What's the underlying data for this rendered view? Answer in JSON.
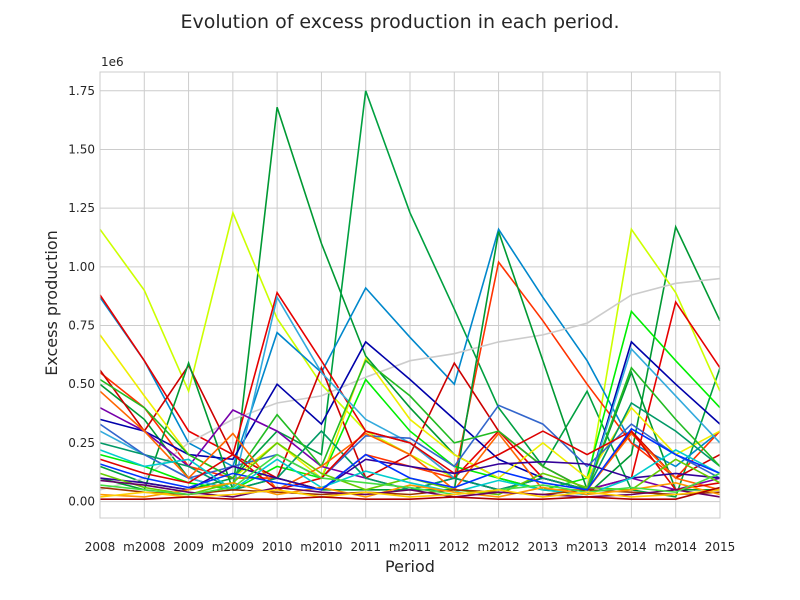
{
  "chart_data": {
    "type": "line",
    "title": "Evolution of excess production in each period.",
    "xlabel": "Period",
    "ylabel": "Excess production",
    "y_offset_label": "1e6",
    "categories": [
      "2008",
      "m2008",
      "2009",
      "m2009",
      "2010",
      "m2010",
      "2011",
      "m2011",
      "2012",
      "m2012",
      "2013",
      "m2013",
      "2014",
      "m2014",
      "2015"
    ],
    "ylim": [
      -0.07,
      1.83
    ],
    "y_scale_multiplier": 1000000,
    "y_ticks": [
      0.0,
      0.25,
      0.5,
      0.75,
      1.0,
      1.25,
      1.5,
      1.75
    ],
    "y_tick_labels": [
      "0.00",
      "0.25",
      "0.50",
      "0.75",
      "1.00",
      "1.25",
      "1.50",
      "1.75"
    ],
    "grid": true,
    "legend": "none",
    "series": [
      {
        "color": "#009933",
        "values": [
          0.5,
          0.35,
          0.1,
          0.05,
          1.68,
          1.1,
          0.62,
          0.4,
          0.2,
          0.1,
          0.05,
          0.03,
          0.2,
          1.17,
          0.77
        ]
      },
      {
        "color": "#00a040",
        "values": [
          0.15,
          0.08,
          0.05,
          0.1,
          0.3,
          0.2,
          1.75,
          1.23,
          0.82,
          0.4,
          0.15,
          0.47,
          0.05,
          0.02,
          0.57
        ]
      },
      {
        "color": "#ccff00",
        "values": [
          1.16,
          0.9,
          0.47,
          1.23,
          0.78,
          0.5,
          0.3,
          0.2,
          0.1,
          0.05,
          0.1,
          0.05,
          1.16,
          0.89,
          0.47
        ]
      },
      {
        "color": "#0088cc",
        "values": [
          0.87,
          0.6,
          0.25,
          0.15,
          0.72,
          0.55,
          0.91,
          0.7,
          0.5,
          1.16,
          0.87,
          0.6,
          0.25,
          0.15,
          0.3
        ]
      },
      {
        "color": "#ff3300",
        "values": [
          0.55,
          0.4,
          0.15,
          0.1,
          0.1,
          0.05,
          0.2,
          0.15,
          0.1,
          1.02,
          0.77,
          0.5,
          0.25,
          0.1,
          0.3
        ]
      },
      {
        "color": "#e60000",
        "values": [
          0.88,
          0.6,
          0.3,
          0.2,
          0.89,
          0.6,
          0.3,
          0.25,
          0.1,
          0.3,
          0.1,
          0.05,
          0.1,
          0.85,
          0.57
        ]
      },
      {
        "color": "#cccccc",
        "values": [
          0.05,
          0.1,
          0.25,
          0.35,
          0.42,
          0.45,
          0.53,
          0.6,
          0.63,
          0.68,
          0.71,
          0.76,
          0.88,
          0.93,
          0.95
        ]
      },
      {
        "color": "#0000aa",
        "values": [
          0.35,
          0.3,
          0.2,
          0.18,
          0.5,
          0.33,
          0.68,
          0.52,
          0.35,
          0.18,
          0.1,
          0.05,
          0.68,
          0.5,
          0.33
        ]
      },
      {
        "color": "#00ee00",
        "values": [
          0.2,
          0.15,
          0.08,
          0.05,
          0.15,
          0.1,
          0.52,
          0.3,
          0.15,
          0.1,
          0.05,
          0.1,
          0.81,
          0.6,
          0.4
        ]
      },
      {
        "color": "#cc0000",
        "values": [
          0.56,
          0.3,
          0.58,
          0.2,
          0.1,
          0.57,
          0.1,
          0.2,
          0.59,
          0.3,
          0.15,
          0.05,
          0.3,
          0.1,
          0.2
        ]
      },
      {
        "color": "#009933",
        "values": [
          0.1,
          0.05,
          0.59,
          0.05,
          0.1,
          0.05,
          0.05,
          0.05,
          0.05,
          1.15,
          0.6,
          0.05,
          0.55,
          0.05,
          0.05
        ]
      },
      {
        "color": "#eeee00",
        "values": [
          0.71,
          0.45,
          0.2,
          0.1,
          0.25,
          0.1,
          0.61,
          0.35,
          0.2,
          0.1,
          0.25,
          0.1,
          0.4,
          0.2,
          0.3
        ]
      },
      {
        "color": "#33aadd",
        "values": [
          0.3,
          0.2,
          0.1,
          0.05,
          0.87,
          0.55,
          0.35,
          0.25,
          0.1,
          0.05,
          0.1,
          0.05,
          0.65,
          0.45,
          0.25
        ]
      },
      {
        "color": "#7700aa",
        "values": [
          0.4,
          0.3,
          0.15,
          0.39,
          0.3,
          0.15,
          0.1,
          0.05,
          0.1,
          0.05,
          0.1,
          0.05,
          0.1,
          0.05,
          0.1
        ]
      },
      {
        "color": "#009966",
        "values": [
          0.25,
          0.2,
          0.15,
          0.05,
          0.1,
          0.3,
          0.1,
          0.05,
          0.1,
          0.05,
          0.1,
          0.05,
          0.42,
          0.3,
          0.15
        ]
      },
      {
        "color": "#3366cc",
        "values": [
          0.33,
          0.2,
          0.1,
          0.15,
          0.2,
          0.1,
          0.28,
          0.27,
          0.15,
          0.41,
          0.33,
          0.15,
          0.33,
          0.2,
          0.1
        ]
      },
      {
        "color": "#22bb22",
        "values": [
          0.52,
          0.4,
          0.2,
          0.1,
          0.37,
          0.15,
          0.6,
          0.45,
          0.25,
          0.3,
          0.15,
          0.05,
          0.57,
          0.35,
          0.15
        ]
      },
      {
        "color": "#ff6600",
        "values": [
          0.47,
          0.3,
          0.1,
          0.29,
          0.05,
          0.15,
          0.29,
          0.2,
          0.05,
          0.29,
          0.05,
          0.05,
          0.29,
          0.1,
          0.05
        ]
      },
      {
        "color": "#dd0000",
        "values": [
          0.18,
          0.12,
          0.08,
          0.2,
          0.05,
          0.1,
          0.3,
          0.25,
          0.12,
          0.2,
          0.3,
          0.2,
          0.3,
          0.05,
          0.08
        ]
      },
      {
        "color": "#330099",
        "values": [
          0.1,
          0.08,
          0.05,
          0.15,
          0.1,
          0.05,
          0.18,
          0.15,
          0.12,
          0.16,
          0.17,
          0.16,
          0.1,
          0.12,
          0.1
        ]
      },
      {
        "color": "#66cc00",
        "values": [
          0.12,
          0.06,
          0.03,
          0.08,
          0.25,
          0.12,
          0.05,
          0.1,
          0.05,
          0.03,
          0.12,
          0.06,
          0.05,
          0.18,
          0.08
        ]
      },
      {
        "color": "#00cccc",
        "values": [
          0.22,
          0.15,
          0.18,
          0.05,
          0.18,
          0.06,
          0.13,
          0.08,
          0.04,
          0.09,
          0.05,
          0.03,
          0.1,
          0.22,
          0.12
        ]
      },
      {
        "color": "#993300",
        "values": [
          0.06,
          0.04,
          0.03,
          0.05,
          0.04,
          0.03,
          0.04,
          0.03,
          0.05,
          0.04,
          0.03,
          0.05,
          0.04,
          0.03,
          0.04
        ]
      },
      {
        "color": "#ff9900",
        "values": [
          0.03,
          0.02,
          0.05,
          0.08,
          0.03,
          0.06,
          0.02,
          0.07,
          0.04,
          0.02,
          0.06,
          0.03,
          0.05,
          0.08,
          0.03
        ]
      },
      {
        "color": "#660066",
        "values": [
          0.09,
          0.07,
          0.04,
          0.02,
          0.06,
          0.04,
          0.03,
          0.05,
          0.02,
          0.04,
          0.03,
          0.02,
          0.03,
          0.05,
          0.02
        ]
      },
      {
        "color": "#0033ff",
        "values": [
          0.16,
          0.1,
          0.06,
          0.12,
          0.08,
          0.05,
          0.2,
          0.1,
          0.06,
          0.13,
          0.08,
          0.05,
          0.31,
          0.2,
          0.12
        ]
      },
      {
        "color": "#44dd44",
        "values": [
          0.07,
          0.05,
          0.03,
          0.06,
          0.2,
          0.1,
          0.08,
          0.06,
          0.03,
          0.05,
          0.07,
          0.04,
          0.06,
          0.04,
          0.12
        ]
      },
      {
        "color": "#ffcc00",
        "values": [
          0.02,
          0.04,
          0.02,
          0.03,
          0.05,
          0.02,
          0.04,
          0.02,
          0.03,
          0.05,
          0.02,
          0.04,
          0.02,
          0.03,
          0.05
        ]
      },
      {
        "color": "#aa0000",
        "values": [
          0.01,
          0.01,
          0.02,
          0.01,
          0.01,
          0.02,
          0.01,
          0.01,
          0.02,
          0.01,
          0.01,
          0.02,
          0.01,
          0.01,
          0.06
        ]
      }
    ]
  }
}
